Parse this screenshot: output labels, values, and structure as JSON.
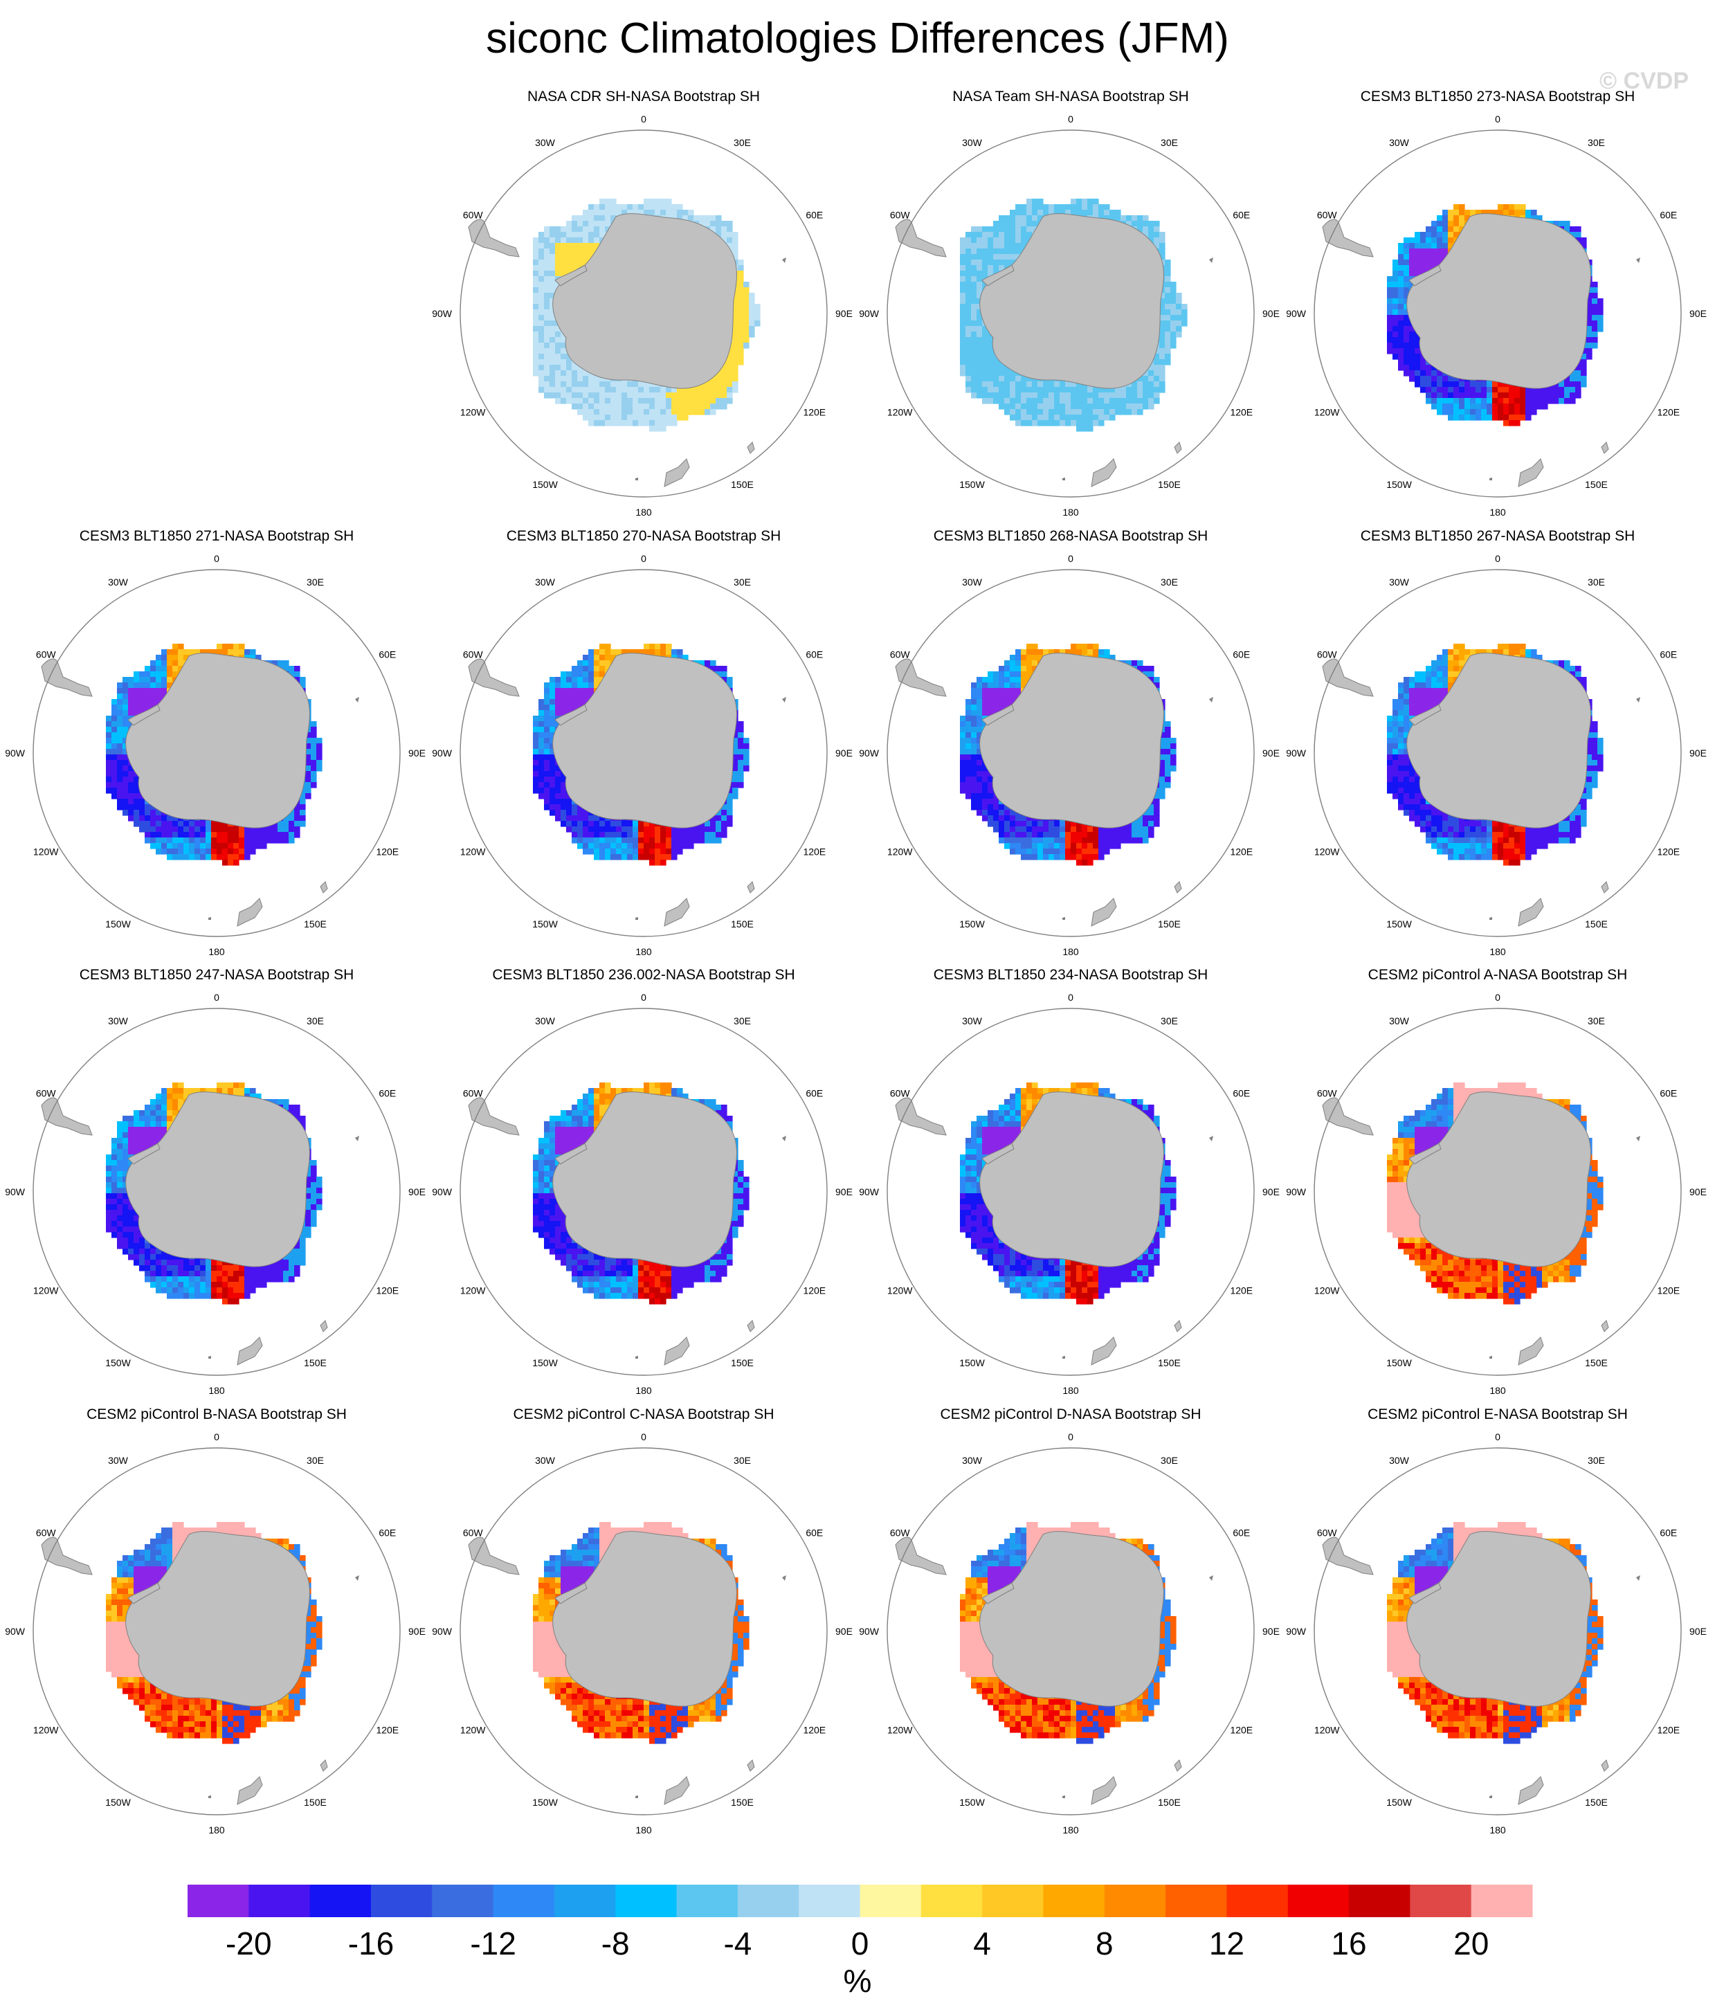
{
  "chart_data": {
    "type": "heatmap",
    "projection": "south-polar-stereographic",
    "title": "siconc Climatologies Differences (JFM)",
    "variable": "siconc",
    "season": "JFM",
    "watermark": "© CVDP",
    "longitude_labels": [
      "0",
      "30E",
      "60E",
      "90E",
      "120E",
      "150E",
      "180",
      "150W",
      "120W",
      "90W",
      "60W",
      "30W"
    ],
    "panels": [
      {
        "title": "NASA CDR SH-NASA Bootstrap SH",
        "pattern": "small"
      },
      {
        "title": "NASA Team SH-NASA Bootstrap SH",
        "pattern": "negative"
      },
      {
        "title": "CESM3 BLT1850 273-NASA Bootstrap SH",
        "pattern": "cesm3"
      },
      {
        "title": "CESM3 BLT1850 271-NASA Bootstrap SH",
        "pattern": "cesm3"
      },
      {
        "title": "CESM3 BLT1850 270-NASA Bootstrap SH",
        "pattern": "cesm3"
      },
      {
        "title": "CESM3 BLT1850 268-NASA Bootstrap SH",
        "pattern": "cesm3"
      },
      {
        "title": "CESM3 BLT1850 267-NASA Bootstrap SH",
        "pattern": "cesm3"
      },
      {
        "title": "CESM3 BLT1850 247-NASA Bootstrap SH",
        "pattern": "cesm3"
      },
      {
        "title": "CESM3 BLT1850 236.002-NASA Bootstrap SH",
        "pattern": "cesm3"
      },
      {
        "title": "CESM3 BLT1850 234-NASA Bootstrap SH",
        "pattern": "cesm3"
      },
      {
        "title": "CESM2 piControl A-NASA Bootstrap SH",
        "pattern": "cesm2"
      },
      {
        "title": "CESM2 piControl B-NASA Bootstrap SH",
        "pattern": "cesm2"
      },
      {
        "title": "CESM2 piControl C-NASA Bootstrap SH",
        "pattern": "cesm2"
      },
      {
        "title": "CESM2 piControl D-NASA Bootstrap SH",
        "pattern": "cesm2"
      },
      {
        "title": "CESM2 piControl E-NASA Bootstrap SH",
        "pattern": "cesm2"
      }
    ],
    "colorbar": {
      "unit": "%",
      "levels": [
        -22,
        -20,
        -18,
        -16,
        -14,
        -12,
        -10,
        -8,
        -6,
        -4,
        -2,
        0,
        2,
        4,
        6,
        8,
        10,
        12,
        14,
        16,
        18,
        20,
        22
      ],
      "colors": [
        "#8b26e8",
        "#4a14f0",
        "#1414f5",
        "#2e4de0",
        "#3a6ee0",
        "#2e88f5",
        "#1ea0f0",
        "#00c0ff",
        "#5cc6f0",
        "#96d0ee",
        "#bfe2f5",
        "#fff6a0",
        "#ffe040",
        "#ffc824",
        "#ffa800",
        "#ff8a00",
        "#ff6000",
        "#ff3000",
        "#f00000",
        "#c80000",
        "#e04848",
        "#ffb0b0"
      ],
      "tick_labels": [
        "-20",
        "-16",
        "-12",
        "-8",
        "-4",
        "0",
        "4",
        "8",
        "12",
        "16",
        "20"
      ],
      "tick_values": [
        -20,
        -16,
        -12,
        -8,
        -4,
        0,
        4,
        8,
        12,
        16,
        20
      ]
    },
    "colors": {
      "land": "#c0c0c0",
      "circle": "#808080",
      "background": "#ffffff"
    }
  }
}
